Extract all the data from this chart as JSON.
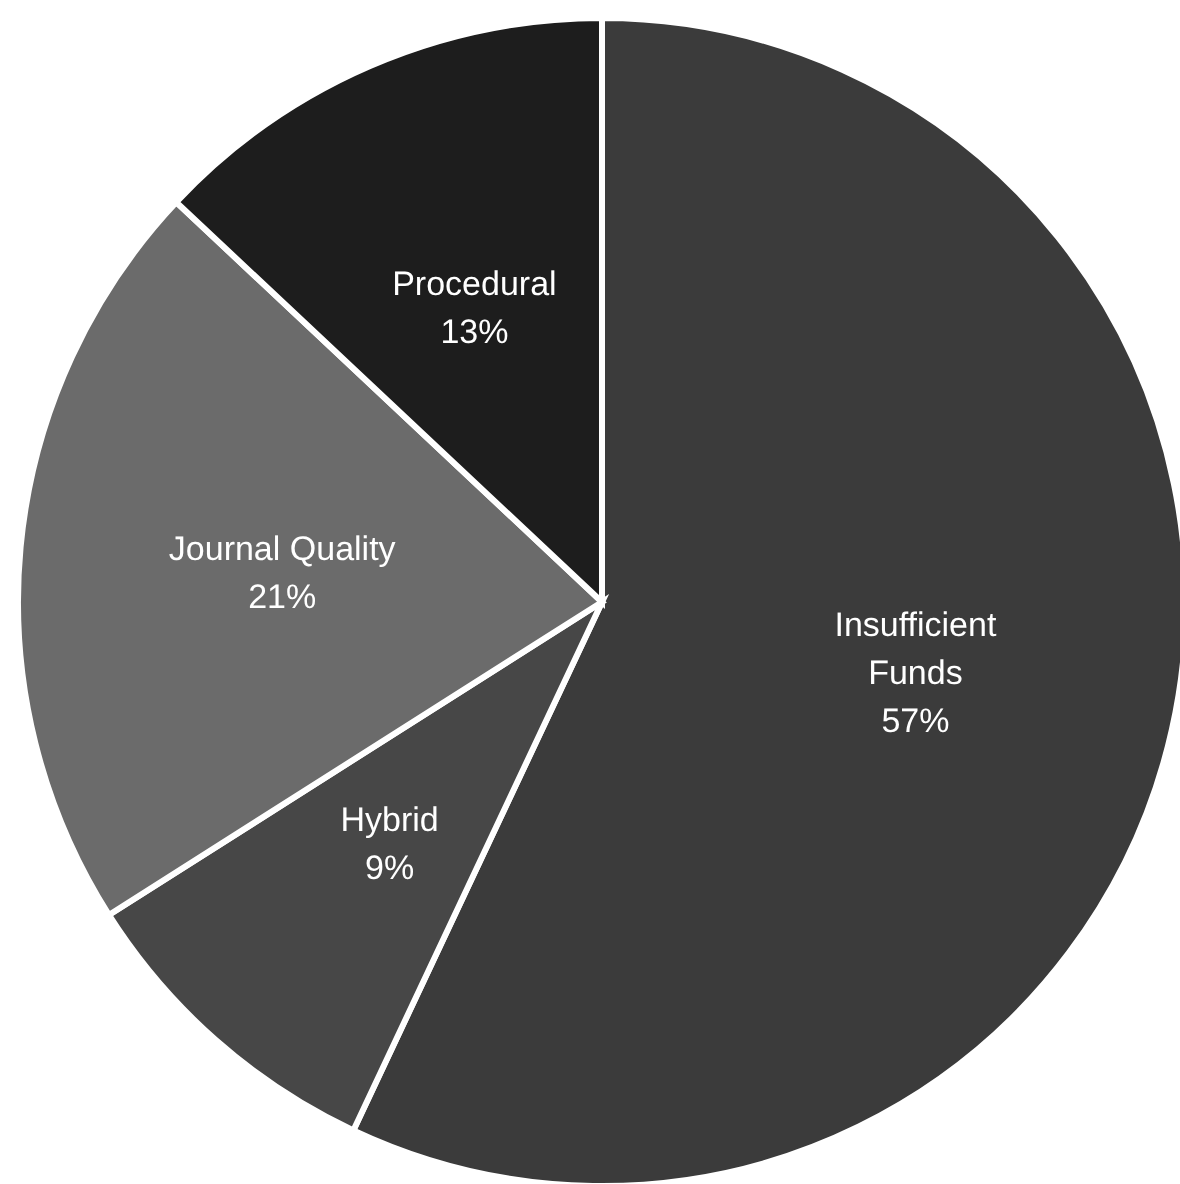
{
  "chart_data": {
    "type": "pie",
    "categories": [
      "Insufficient Funds",
      "Hybrid",
      "Journal Quality",
      "Procedural"
    ],
    "values": [
      57,
      9,
      21,
      13
    ],
    "value_labels": [
      "57%",
      "9%",
      "21%",
      "13%"
    ],
    "colors": [
      "#3b3b3b",
      "#474747",
      "#6b6b6b",
      "#1d1d1d"
    ],
    "legend": false
  }
}
